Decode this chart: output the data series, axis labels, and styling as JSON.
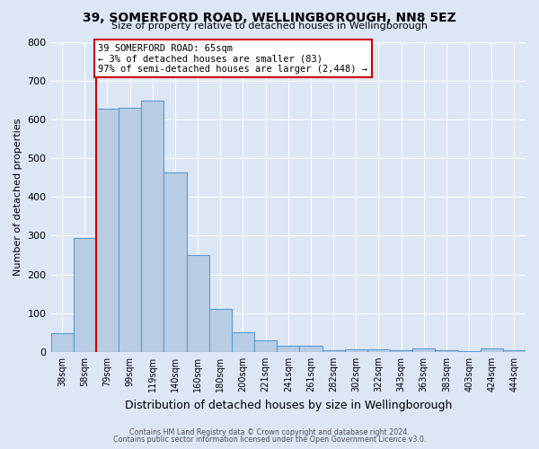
{
  "title": "39, SOMERFORD ROAD, WELLINGBOROUGH, NN8 5EZ",
  "subtitle": "Size of property relative to detached houses in Wellingborough",
  "xlabel": "Distribution of detached houses by size in Wellingborough",
  "ylabel": "Number of detached properties",
  "bar_labels": [
    "38sqm",
    "58sqm",
    "79sqm",
    "99sqm",
    "119sqm",
    "140sqm",
    "160sqm",
    "180sqm",
    "200sqm",
    "221sqm",
    "241sqm",
    "261sqm",
    "282sqm",
    "302sqm",
    "322sqm",
    "343sqm",
    "363sqm",
    "383sqm",
    "403sqm",
    "424sqm",
    "444sqm"
  ],
  "bar_heights": [
    48,
    295,
    628,
    630,
    648,
    462,
    251,
    111,
    50,
    29,
    17,
    17,
    5,
    7,
    6,
    5,
    9,
    5,
    1,
    8,
    5
  ],
  "bar_color": "#b8cce4",
  "bar_edge_color": "#5b9bd5",
  "background_color": "#dce6f5",
  "plot_bg_color": "#dce6f5",
  "grid_color": "#ffffff",
  "vline_color": "#cc0000",
  "vline_x_index": 1.5,
  "annotation_text": "39 SOMERFORD ROAD: 65sqm\n← 3% of detached houses are smaller (83)\n97% of semi-detached houses are larger (2,448) →",
  "annotation_box_color": "#ffffff",
  "annotation_box_edge_color": "#cc0000",
  "ylim": [
    0,
    800
  ],
  "yticks": [
    0,
    100,
    200,
    300,
    400,
    500,
    600,
    700,
    800
  ],
  "footer1": "Contains HM Land Registry data © Crown copyright and database right 2024.",
  "footer2": "Contains public sector information licensed under the Open Government Licence v3.0."
}
